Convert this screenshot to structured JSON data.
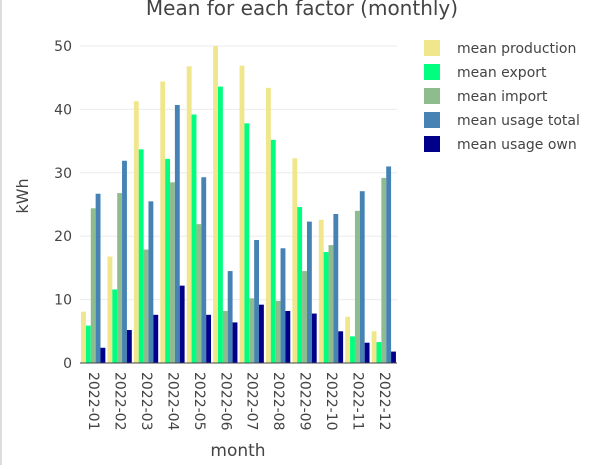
{
  "chart_data": {
    "type": "bar",
    "title": "Mean for each factor (monthly)",
    "xlabel": "month",
    "ylabel": "kWh",
    "ylim": [
      0,
      50
    ],
    "yticks": [
      0,
      10,
      20,
      30,
      40,
      50
    ],
    "grid": true,
    "legend_position": "right",
    "categories": [
      "2022-01",
      "2022-02",
      "2022-03",
      "2022-04",
      "2022-05",
      "2022-06",
      "2022-07",
      "2022-08",
      "2022-09",
      "2022-10",
      "2022-11",
      "2022-12"
    ],
    "series": [
      {
        "name": "mean production",
        "color": "#f0e68c",
        "values": [
          8.1,
          16.8,
          41.3,
          44.4,
          46.8,
          50.0,
          46.9,
          43.4,
          32.3,
          22.6,
          7.3,
          5.0
        ]
      },
      {
        "name": "mean export",
        "color": "#00ff7f",
        "values": [
          5.9,
          11.6,
          33.7,
          32.2,
          39.2,
          43.6,
          37.8,
          35.2,
          24.6,
          17.5,
          4.2,
          3.3
        ]
      },
      {
        "name": "mean import",
        "color": "#8fbc8f",
        "values": [
          24.4,
          26.8,
          17.9,
          28.5,
          21.9,
          8.2,
          10.2,
          9.8,
          14.5,
          18.6,
          24.0,
          29.2
        ]
      },
      {
        "name": "mean usage total",
        "color": "#4682b4",
        "values": [
          26.7,
          31.9,
          25.5,
          40.7,
          29.3,
          14.5,
          19.4,
          18.1,
          22.3,
          23.5,
          27.1,
          31.0
        ]
      },
      {
        "name": "mean usage own",
        "color": "#00008b",
        "values": [
          2.4,
          5.2,
          7.6,
          12.2,
          7.6,
          6.4,
          9.2,
          8.2,
          7.8,
          5.0,
          3.2,
          1.8
        ]
      }
    ]
  }
}
